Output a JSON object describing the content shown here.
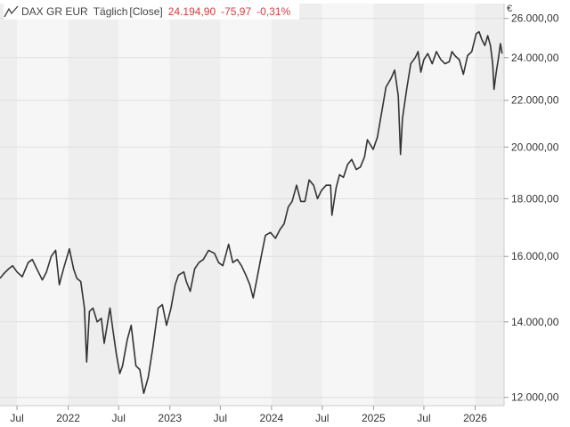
{
  "header": {
    "symbol": "DAX GR EUR",
    "frequency": "Täglich",
    "price_type": "[Close]",
    "last": "24.194,90",
    "change": "-75,97",
    "change_pct": "-0,31%",
    "icon": "line-chart-icon"
  },
  "currency": "€",
  "colors": {
    "line": "#333333",
    "negative": "#e03b3b",
    "band_dark": "#eeeeee",
    "band_light": "#f6f6f6",
    "grid": "#dddddd"
  },
  "chart_data": {
    "type": "line",
    "title": "DAX GR EUR",
    "y_scale": "log",
    "ylim": [
      11800,
      26800
    ],
    "xlim": [
      "2021-05-01",
      "2026-04-15"
    ],
    "grid": true,
    "legend": "none",
    "y_ticks": [
      {
        "value": 12000,
        "label": "12.000,00"
      },
      {
        "value": 14000,
        "label": "14.000,00"
      },
      {
        "value": 16000,
        "label": "16.000,00"
      },
      {
        "value": 18000,
        "label": "18.000,00"
      },
      {
        "value": 20000,
        "label": "20.000,00"
      },
      {
        "value": 22000,
        "label": "22.000,00"
      },
      {
        "value": 24000,
        "label": "24.000,00"
      },
      {
        "value": 26000,
        "label": "26.000,00"
      }
    ],
    "x_ticks": [
      {
        "date": "2021-07-01",
        "label": "Jul"
      },
      {
        "date": "2022-01-01",
        "label": "2022"
      },
      {
        "date": "2022-07-01",
        "label": "Jul"
      },
      {
        "date": "2023-01-01",
        "label": "2023"
      },
      {
        "date": "2023-07-01",
        "label": "Jul"
      },
      {
        "date": "2024-01-01",
        "label": "2024"
      },
      {
        "date": "2024-07-01",
        "label": "Jul"
      },
      {
        "date": "2025-01-01",
        "label": "2025"
      },
      {
        "date": "2025-07-01",
        "label": "Jul"
      },
      {
        "date": "2026-01-01",
        "label": "2026"
      }
    ],
    "series": [
      {
        "points": [
          [
            "2021-05-01",
            15300
          ],
          [
            "2021-05-15",
            15450
          ],
          [
            "2021-06-01",
            15600
          ],
          [
            "2021-06-15",
            15700
          ],
          [
            "2021-07-01",
            15500
          ],
          [
            "2021-07-20",
            15350
          ],
          [
            "2021-08-10",
            15800
          ],
          [
            "2021-08-25",
            15900
          ],
          [
            "2021-09-10",
            15600
          ],
          [
            "2021-09-30",
            15250
          ],
          [
            "2021-10-15",
            15500
          ],
          [
            "2021-11-01",
            16000
          ],
          [
            "2021-11-17",
            16200
          ],
          [
            "2021-11-30",
            15100
          ],
          [
            "2021-12-15",
            15600
          ],
          [
            "2022-01-05",
            16250
          ],
          [
            "2022-01-20",
            15600
          ],
          [
            "2022-02-01",
            15300
          ],
          [
            "2022-02-15",
            15200
          ],
          [
            "2022-02-28",
            14400
          ],
          [
            "2022-03-08",
            12900
          ],
          [
            "2022-03-18",
            14300
          ],
          [
            "2022-03-31",
            14400
          ],
          [
            "2022-04-15",
            14000
          ],
          [
            "2022-04-30",
            14100
          ],
          [
            "2022-05-10",
            13400
          ],
          [
            "2022-05-31",
            14400
          ],
          [
            "2022-06-10",
            13800
          ],
          [
            "2022-06-23",
            13100
          ],
          [
            "2022-07-05",
            12600
          ],
          [
            "2022-07-15",
            12800
          ],
          [
            "2022-08-01",
            13500
          ],
          [
            "2022-08-15",
            13900
          ],
          [
            "2022-09-01",
            12800
          ],
          [
            "2022-09-15",
            12700
          ],
          [
            "2022-09-29",
            12100
          ],
          [
            "2022-10-15",
            12500
          ],
          [
            "2022-11-01",
            13300
          ],
          [
            "2022-11-20",
            14400
          ],
          [
            "2022-12-05",
            14500
          ],
          [
            "2022-12-20",
            13900
          ],
          [
            "2023-01-05",
            14400
          ],
          [
            "2023-01-20",
            15100
          ],
          [
            "2023-02-01",
            15400
          ],
          [
            "2023-02-20",
            15500
          ],
          [
            "2023-03-01",
            15200
          ],
          [
            "2023-03-15",
            14900
          ],
          [
            "2023-03-31",
            15600
          ],
          [
            "2023-04-15",
            15800
          ],
          [
            "2023-05-01",
            15900
          ],
          [
            "2023-05-20",
            16200
          ],
          [
            "2023-06-10",
            16100
          ],
          [
            "2023-06-25",
            15800
          ],
          [
            "2023-07-10",
            15700
          ],
          [
            "2023-07-31",
            16400
          ],
          [
            "2023-08-15",
            15800
          ],
          [
            "2023-08-31",
            15900
          ],
          [
            "2023-09-15",
            15700
          ],
          [
            "2023-10-01",
            15400
          ],
          [
            "2023-10-15",
            15100
          ],
          [
            "2023-10-27",
            14700
          ],
          [
            "2023-11-10",
            15300
          ],
          [
            "2023-11-25",
            16000
          ],
          [
            "2023-12-10",
            16700
          ],
          [
            "2023-12-28",
            16800
          ],
          [
            "2024-01-15",
            16600
          ],
          [
            "2024-01-31",
            16900
          ],
          [
            "2024-02-15",
            17100
          ],
          [
            "2024-03-01",
            17700
          ],
          [
            "2024-03-15",
            17900
          ],
          [
            "2024-03-31",
            18500
          ],
          [
            "2024-04-15",
            17900
          ],
          [
            "2024-04-30",
            17900
          ],
          [
            "2024-05-15",
            18700
          ],
          [
            "2024-05-31",
            18500
          ],
          [
            "2024-06-14",
            18000
          ],
          [
            "2024-06-28",
            18300
          ],
          [
            "2024-07-15",
            18500
          ],
          [
            "2024-07-31",
            18500
          ],
          [
            "2024-08-05",
            17400
          ],
          [
            "2024-08-20",
            18400
          ],
          [
            "2024-09-01",
            18900
          ],
          [
            "2024-09-15",
            18800
          ],
          [
            "2024-09-30",
            19300
          ],
          [
            "2024-10-15",
            19500
          ],
          [
            "2024-10-31",
            19100
          ],
          [
            "2024-11-15",
            19200
          ],
          [
            "2024-11-30",
            19600
          ],
          [
            "2024-12-10",
            20300
          ],
          [
            "2024-12-31",
            19900
          ],
          [
            "2025-01-15",
            20400
          ],
          [
            "2025-01-31",
            21500
          ],
          [
            "2025-02-15",
            22600
          ],
          [
            "2025-03-05",
            23000
          ],
          [
            "2025-03-18",
            23400
          ],
          [
            "2025-03-31",
            22200
          ],
          [
            "2025-04-08",
            19700
          ],
          [
            "2025-04-15",
            21200
          ],
          [
            "2025-04-30",
            22500
          ],
          [
            "2025-05-15",
            23700
          ],
          [
            "2025-05-31",
            24000
          ],
          [
            "2025-06-10",
            24300
          ],
          [
            "2025-06-20",
            23300
          ],
          [
            "2025-07-01",
            23900
          ],
          [
            "2025-07-15",
            24200
          ],
          [
            "2025-07-31",
            23700
          ],
          [
            "2025-08-15",
            24300
          ],
          [
            "2025-08-31",
            23900
          ],
          [
            "2025-09-15",
            23700
          ],
          [
            "2025-09-30",
            23800
          ],
          [
            "2025-10-10",
            24300
          ],
          [
            "2025-10-20",
            24100
          ],
          [
            "2025-11-05",
            23900
          ],
          [
            "2025-11-20",
            23200
          ],
          [
            "2025-12-05",
            24100
          ],
          [
            "2025-12-20",
            24300
          ],
          [
            "2026-01-05",
            25200
          ],
          [
            "2026-01-15",
            25300
          ],
          [
            "2026-01-25",
            24900
          ],
          [
            "2026-02-05",
            24600
          ],
          [
            "2026-02-15",
            25100
          ],
          [
            "2026-02-25",
            24600
          ],
          [
            "2026-03-05",
            23700
          ],
          [
            "2026-03-10",
            22500
          ],
          [
            "2026-03-18",
            23300
          ],
          [
            "2026-03-25",
            23900
          ],
          [
            "2026-04-02",
            24700
          ],
          [
            "2026-04-08",
            24194.9
          ]
        ]
      }
    ]
  }
}
